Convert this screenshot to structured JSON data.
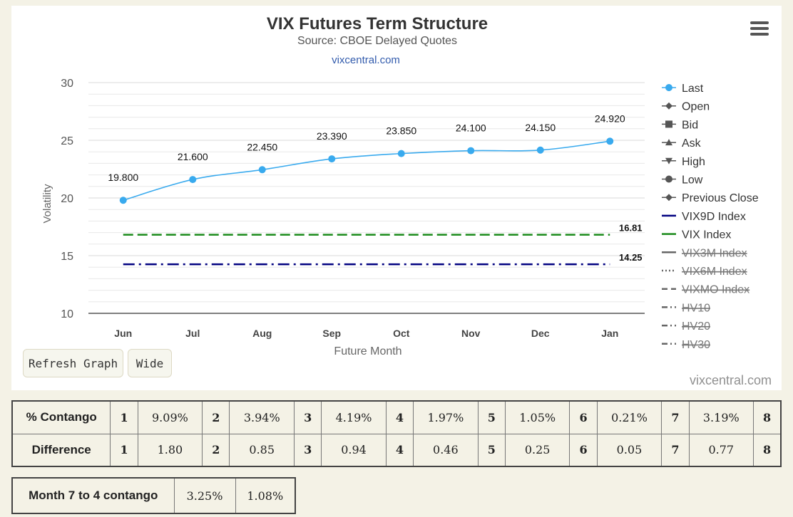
{
  "chart_data": {
    "type": "line",
    "title": "VIX Futures Term Structure",
    "subtitle": "Source: CBOE Delayed Quotes",
    "link": "vixcentral.com",
    "xlabel": "Future Month",
    "ylabel": "Volatility",
    "categories": [
      "Jun",
      "Jul",
      "Aug",
      "Sep",
      "Oct",
      "Nov",
      "Dec",
      "Jan"
    ],
    "ylim": [
      10,
      30
    ],
    "yticks": [
      10,
      15,
      20,
      25,
      30
    ],
    "grid": true,
    "series": [
      {
        "name": "Last",
        "values": [
          19.8,
          21.6,
          22.45,
          23.39,
          23.85,
          24.1,
          24.15,
          24.92
        ],
        "labels": [
          "19.800",
          "21.600",
          "22.450",
          "23.390",
          "23.850",
          "24.100",
          "24.150",
          "24.920"
        ],
        "color": "#39aaee"
      }
    ],
    "reference_lines": [
      {
        "name": "VIX Index",
        "value": 16.81,
        "label": "16.81",
        "color": "#1a8a1a",
        "style": "dashed"
      },
      {
        "name": "VIX9D Index",
        "value": 14.25,
        "label": "14.25",
        "color": "#000080",
        "style": "dash-dot"
      }
    ],
    "legend": {
      "position": "right",
      "items": [
        {
          "name": "Last",
          "symbol": "circle",
          "color": "#39aaee",
          "hidden": false
        },
        {
          "name": "Open",
          "symbol": "diamond",
          "color": "#555555",
          "hidden": false
        },
        {
          "name": "Bid",
          "symbol": "square",
          "color": "#555555",
          "hidden": false
        },
        {
          "name": "Ask",
          "symbol": "triangle",
          "color": "#555555",
          "hidden": false
        },
        {
          "name": "High",
          "symbol": "triangle-down",
          "color": "#555555",
          "hidden": false
        },
        {
          "name": "Low",
          "symbol": "circle",
          "color": "#555555",
          "hidden": false
        },
        {
          "name": "Previous Close",
          "symbol": "diamond",
          "color": "#555555",
          "hidden": false
        },
        {
          "name": "VIX9D Index",
          "symbol": "line",
          "color": "#000080",
          "hidden": false
        },
        {
          "name": "VIX Index",
          "symbol": "line",
          "color": "#1a8a1a",
          "hidden": false
        },
        {
          "name": "VIX3M Index",
          "symbol": "line",
          "color": "#666666",
          "hidden": true
        },
        {
          "name": "VIX6M Index",
          "symbol": "dotted",
          "color": "#666666",
          "hidden": true
        },
        {
          "name": "VIXMO Index",
          "symbol": "dashed",
          "color": "#666666",
          "hidden": true
        },
        {
          "name": "HV10",
          "symbol": "dash-dot",
          "color": "#666666",
          "hidden": true
        },
        {
          "name": "HV20",
          "symbol": "dash-dot",
          "color": "#666666",
          "hidden": true
        },
        {
          "name": "HV30",
          "symbol": "dash-dot",
          "color": "#666666",
          "hidden": true
        }
      ]
    }
  },
  "buttons": {
    "refresh": "Refresh Graph",
    "wide": "Wide"
  },
  "credit": "vixcentral.com",
  "contango_table": {
    "rows": [
      {
        "label": "% Contango",
        "values": [
          "9.09%",
          "3.94%",
          "4.19%",
          "1.97%",
          "1.05%",
          "0.21%",
          "3.19%"
        ]
      },
      {
        "label": "Difference",
        "values": [
          "1.80",
          "0.85",
          "0.94",
          "0.46",
          "0.25",
          "0.05",
          "0.77"
        ]
      }
    ],
    "indices": [
      "1",
      "2",
      "3",
      "4",
      "5",
      "6",
      "7",
      "8"
    ]
  },
  "month_table": {
    "label": "Month 7 to 4 contango",
    "values": [
      "3.25%",
      "1.08%"
    ]
  }
}
